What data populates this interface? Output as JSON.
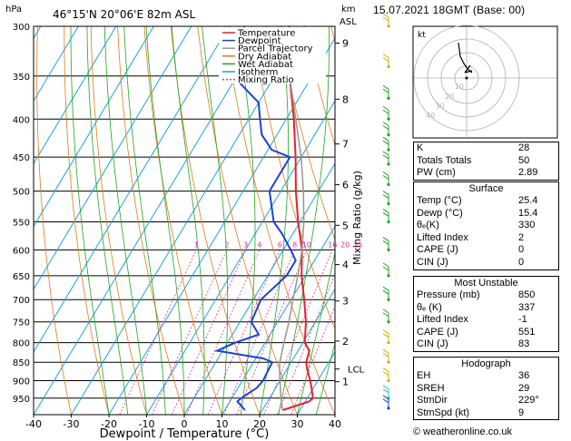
{
  "header": {
    "hpa_unit": "hPa",
    "station": "46°15'N  20°06'E  82m  ASL",
    "km_unit": "km",
    "asl_unit": "ASL",
    "datetime": "15.07.2021  18GMT  (Base: 00)"
  },
  "legend": [
    {
      "label": "Temperature",
      "color": "#e8202a",
      "dash": ""
    },
    {
      "label": "Dewpoint",
      "color": "#1f3fd6",
      "dash": ""
    },
    {
      "label": "Parcel Trajectory",
      "color": "#9a9a9a",
      "dash": ""
    },
    {
      "label": "Dry Adiabat",
      "color": "#e07b16",
      "dash": ""
    },
    {
      "label": "Wet Adiabat",
      "color": "#22a322",
      "dash": ""
    },
    {
      "label": "Isotherm",
      "color": "#1aa3d9",
      "dash": ""
    },
    {
      "label": "Mixing Ratio",
      "color": "#e0309a",
      "dash": "2,2"
    }
  ],
  "chart_data": {
    "type": "line",
    "title": "",
    "xlabel": "Dewpoint / Temperature (°C)",
    "ylabel": "hPa",
    "xlim": [
      -40,
      40
    ],
    "ylim": [
      1000,
      300
    ],
    "x_ticks": [
      "-40",
      "-30",
      "-20",
      "-10",
      "0",
      "10",
      "20",
      "30",
      "40"
    ],
    "pressure_levels": [
      300,
      350,
      400,
      450,
      500,
      550,
      600,
      650,
      700,
      750,
      800,
      850,
      900,
      950
    ],
    "height_axis_label": "km ASL",
    "height_ticks": [
      {
        "km": "1",
        "p": 903
      },
      {
        "km": "2",
        "p": 796
      },
      {
        "km": "3",
        "p": 703
      },
      {
        "km": "4",
        "p": 628
      },
      {
        "km": "5",
        "p": 556
      },
      {
        "km": "6",
        "p": 490
      },
      {
        "km": "7",
        "p": 432
      },
      {
        "km": "8",
        "p": 376
      },
      {
        "km": "9",
        "p": 316
      }
    ],
    "lcl": {
      "label": "LCL",
      "p": 868
    },
    "mixing_ratio_axis_label": "Mixing Ratio (g/kg)",
    "mixing_ratio_labels": [
      "1",
      "2",
      "3",
      "4",
      "6",
      "8",
      "10",
      "16",
      "20",
      "25"
    ],
    "series": [
      {
        "name": "Temperature",
        "color": "#e8202a",
        "points": [
          [
            986,
            25.4
          ],
          [
            960,
            31
          ],
          [
            950,
            31.5
          ],
          [
            920,
            29.5
          ],
          [
            900,
            28
          ],
          [
            870,
            25.5
          ],
          [
            850,
            24
          ],
          [
            820,
            23
          ],
          [
            800,
            20.5
          ],
          [
            750,
            17.5
          ],
          [
            700,
            13.5
          ],
          [
            650,
            9
          ],
          [
            600,
            5
          ],
          [
            550,
            -0.5
          ],
          [
            500,
            -6
          ],
          [
            450,
            -11.5
          ],
          [
            400,
            -18
          ],
          [
            350,
            -26
          ],
          [
            300,
            -34
          ]
        ]
      },
      {
        "name": "Dewpoint",
        "color": "#1f3fd6",
        "points": [
          [
            986,
            15.4
          ],
          [
            960,
            12
          ],
          [
            950,
            12.5
          ],
          [
            920,
            15
          ],
          [
            900,
            15.5
          ],
          [
            850,
            15
          ],
          [
            840,
            12
          ],
          [
            820,
            -1.5
          ],
          [
            800,
            2
          ],
          [
            780,
            7
          ],
          [
            750,
            3
          ],
          [
            700,
            2
          ],
          [
            650,
            5
          ],
          [
            620,
            5
          ],
          [
            600,
            2
          ],
          [
            570,
            -3
          ],
          [
            550,
            -7
          ],
          [
            500,
            -13
          ],
          [
            450,
            -13
          ],
          [
            440,
            -19
          ],
          [
            420,
            -24
          ],
          [
            400,
            -27
          ],
          [
            380,
            -30
          ],
          [
            350,
            -41
          ],
          [
            320,
            -38
          ],
          [
            310,
            -44
          ],
          [
            300,
            -46
          ]
        ]
      },
      {
        "name": "Parcel Trajectory",
        "color": "#9a9a9a",
        "points": [
          [
            986,
            25.4
          ],
          [
            950,
            23
          ],
          [
            900,
            20
          ],
          [
            868,
            18
          ],
          [
            850,
            17
          ],
          [
            800,
            15
          ],
          [
            750,
            13
          ],
          [
            700,
            10.5
          ],
          [
            650,
            8
          ],
          [
            600,
            5
          ],
          [
            550,
            1
          ],
          [
            500,
            -4
          ],
          [
            450,
            -10
          ],
          [
            400,
            -17.5
          ],
          [
            350,
            -26
          ],
          [
            300,
            -36
          ]
        ]
      }
    ],
    "wind_barbs": [
      {
        "p": 300,
        "color": "#c8b400"
      },
      {
        "p": 340,
        "color": "#c8b400"
      },
      {
        "p": 375,
        "color": "#22a322"
      },
      {
        "p": 400,
        "color": "#22a322"
      },
      {
        "p": 420,
        "color": "#22a322"
      },
      {
        "p": 440,
        "color": "#22a322"
      },
      {
        "p": 460,
        "color": "#22a322"
      },
      {
        "p": 490,
        "color": "#22a322"
      },
      {
        "p": 520,
        "color": "#22a322"
      },
      {
        "p": 550,
        "color": "#22a322"
      },
      {
        "p": 600,
        "color": "#22a322"
      },
      {
        "p": 650,
        "color": "#22a322"
      },
      {
        "p": 700,
        "color": "#22a322"
      },
      {
        "p": 750,
        "color": "#22a322"
      },
      {
        "p": 800,
        "color": "#c8b400"
      },
      {
        "p": 850,
        "color": "#c8b400"
      },
      {
        "p": 900,
        "color": "#c8b400"
      },
      {
        "p": 950,
        "color": "#22c0c0"
      },
      {
        "p": 980,
        "color": "#1f3fd6"
      }
    ]
  },
  "hodograph": {
    "unit": "kt",
    "ring_labels": [
      "10",
      "20",
      "30",
      "40"
    ]
  },
  "indices": [
    {
      "label": "K",
      "value": "28"
    },
    {
      "label": "Totals Totals",
      "value": "50"
    },
    {
      "label": "PW (cm)",
      "value": "2.89"
    }
  ],
  "surface": {
    "title": "Surface",
    "rows": [
      {
        "label": "Temp (°C)",
        "value": "25.4"
      },
      {
        "label": "Dewp (°C)",
        "value": "15.4"
      },
      {
        "label": "θₑ(K)",
        "value": "330"
      },
      {
        "label": "Lifted Index",
        "value": "2"
      },
      {
        "label": "CAPE (J)",
        "value": "0"
      },
      {
        "label": "CIN (J)",
        "value": "0"
      }
    ]
  },
  "most_unstable": {
    "title": "Most Unstable",
    "rows": [
      {
        "label": "Pressure (mb)",
        "value": "850"
      },
      {
        "label": "θₑ (K)",
        "value": "337"
      },
      {
        "label": "Lifted Index",
        "value": "-1"
      },
      {
        "label": "CAPE (J)",
        "value": "551"
      },
      {
        "label": "CIN (J)",
        "value": "83"
      }
    ]
  },
  "hodograph_stats": {
    "title": "Hodograph",
    "rows": [
      {
        "label": "EH",
        "value": "36"
      },
      {
        "label": "SREH",
        "value": "29"
      },
      {
        "label": "StmDir",
        "value": "229°"
      },
      {
        "label": "StmSpd (kt)",
        "value": "9"
      }
    ]
  },
  "footer": {
    "copyright": "© weatheronline.co.uk"
  }
}
